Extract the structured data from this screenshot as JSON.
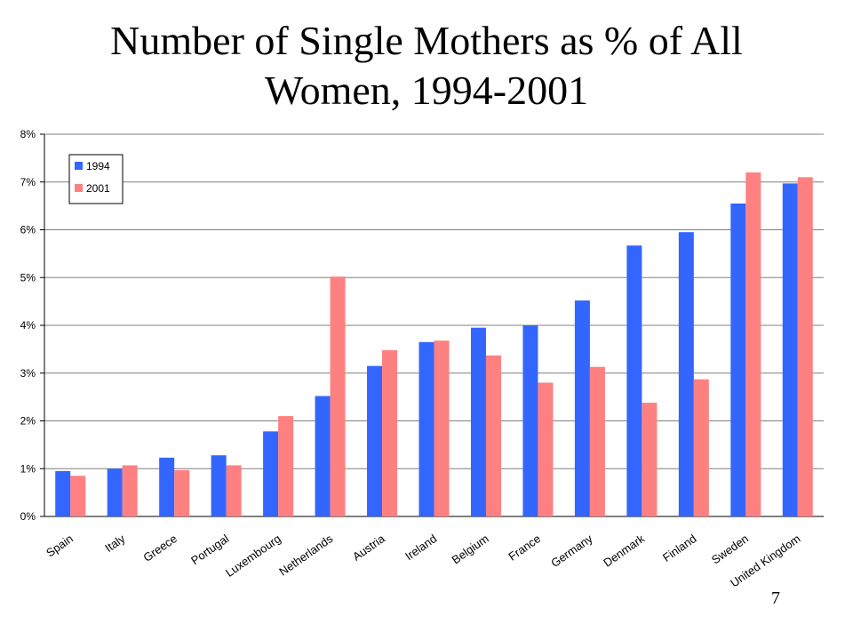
{
  "page": {
    "number": "7"
  },
  "chart_data": {
    "type": "bar",
    "title_lines": [
      "Number of Single Mothers as % of All",
      "Women, 1994-2001"
    ],
    "categories": [
      "Spain",
      "Italy",
      "Greece",
      "Portugal",
      "Luxembourg",
      "Netherlands",
      "Austria",
      "Ireland",
      "Belgium",
      "France",
      "Germany",
      "Denmark",
      "Finland",
      "Sweden",
      "United Kingdom"
    ],
    "series": [
      {
        "name": "1994",
        "color": "#3366ff",
        "values": [
          0.95,
          1.0,
          1.23,
          1.28,
          1.78,
          2.52,
          3.15,
          3.65,
          3.95,
          4.0,
          4.52,
          5.67,
          5.95,
          6.55,
          6.97
        ]
      },
      {
        "name": "2001",
        "color": "#ff8080",
        "values": [
          0.85,
          1.07,
          0.97,
          1.07,
          2.1,
          5.02,
          3.48,
          3.68,
          3.37,
          2.8,
          3.13,
          2.38,
          2.87,
          7.2,
          7.1
        ]
      }
    ],
    "ylim": [
      0,
      8
    ],
    "yticks": [
      "0%",
      "1%",
      "2%",
      "3%",
      "4%",
      "5%",
      "6%",
      "7%",
      "8%"
    ],
    "grid": true,
    "legend": "top-left"
  }
}
